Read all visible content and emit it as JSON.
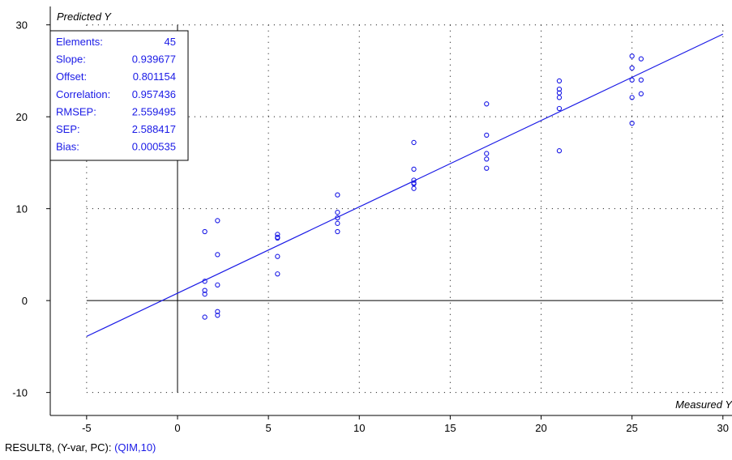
{
  "colors": {
    "series": "#1a1ae6",
    "axis": "#000000",
    "grid": "#000000",
    "background": "#ffffff"
  },
  "stats": [
    {
      "label": "Elements:",
      "value": "45"
    },
    {
      "label": "Slope:",
      "value": "0.939677"
    },
    {
      "label": "Offset:",
      "value": "0.801154"
    },
    {
      "label": "Correlation:",
      "value": "0.957436"
    },
    {
      "label": "RMSEP:",
      "value": "2.559495"
    },
    {
      "label": "SEP:",
      "value": "2.588417"
    },
    {
      "label": "Bias:",
      "value": "0.000535"
    }
  ],
  "footer": {
    "prefix": "RESULT8, (Y-var, PC): ",
    "highlight": "(QIM,10)"
  },
  "chart_data": {
    "type": "scatter",
    "xlabel": "Measured Y",
    "ylabel": "Predicted Y",
    "xlim": [
      -7,
      30.5
    ],
    "ylim": [
      -12.5,
      32
    ],
    "xticks": [
      -5,
      0,
      5,
      10,
      15,
      20,
      25,
      30
    ],
    "yticks": [
      -10,
      0,
      10,
      20,
      30
    ],
    "grid": "dotted",
    "regression_line": {
      "slope": 0.939677,
      "offset": 0.801154,
      "x_range": [
        -5,
        30
      ]
    },
    "series": [
      {
        "x": [
          1.5,
          1.5,
          1.5,
          1.5,
          1.5,
          2.2,
          2.2,
          2.2,
          2.2,
          2.2,
          5.5,
          5.5,
          5.5,
          5.5,
          5.5,
          8.8,
          8.8,
          8.8,
          8.8,
          8.8,
          13.0,
          13.0,
          13.0,
          13.0,
          13.0,
          13.0,
          17.0,
          17.0,
          17.0,
          17.0,
          17.0,
          21.0,
          21.0,
          21.0,
          21.0,
          21.0,
          21.0,
          25.0,
          25.0,
          25.0,
          25.0,
          25.0,
          25.5,
          25.5,
          25.5
        ],
        "y": [
          7.5,
          2.1,
          1.1,
          0.7,
          -1.8,
          8.7,
          5.0,
          1.7,
          -1.2,
          -1.6,
          7.2,
          6.9,
          6.8,
          4.8,
          2.9,
          11.5,
          9.6,
          9.0,
          8.4,
          7.5,
          17.2,
          14.3,
          13.1,
          12.8,
          12.7,
          12.2,
          21.4,
          18.0,
          16.0,
          15.4,
          14.4,
          23.9,
          23.0,
          22.6,
          22.1,
          20.9,
          16.3,
          26.6,
          25.3,
          24.0,
          22.1,
          19.3,
          26.3,
          24.0,
          22.5
        ]
      }
    ]
  }
}
